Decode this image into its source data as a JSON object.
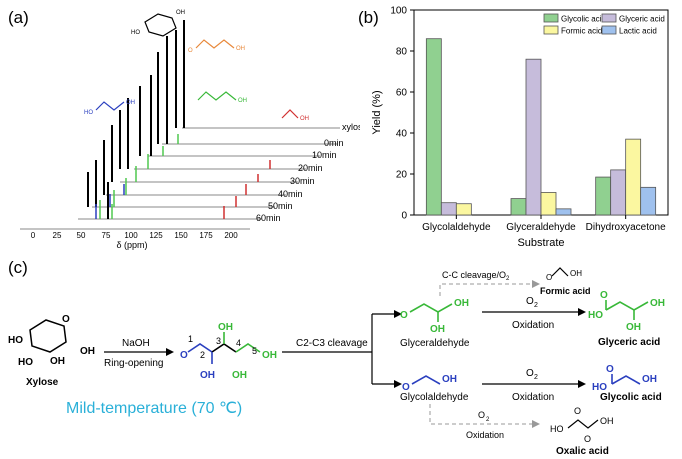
{
  "panels": {
    "a": "(a)",
    "b": "(b)",
    "c": "(c)"
  },
  "panel_a": {
    "trace_labels": [
      "xylose",
      "0min",
      "10min",
      "20min",
      "30min",
      "40min",
      "50min",
      "60min"
    ],
    "x_ticks": [
      "0",
      "25",
      "50",
      "75",
      "100",
      "125",
      "150",
      "175",
      "200"
    ],
    "x_label": "δ (ppm)"
  },
  "chart_data": {
    "type": "bar",
    "categories": [
      "Glycolaldehyde",
      "Glyceraldehyde",
      "Dihydroxyacetone"
    ],
    "series": [
      {
        "name": "Glycolic acid",
        "color": "#90d090",
        "values": [
          86,
          8,
          18.5
        ]
      },
      {
        "name": "Glyceric acid",
        "color": "#c6bcdb",
        "values": [
          6,
          76,
          22
        ]
      },
      {
        "name": "Formic acid",
        "color": "#fbf7a0",
        "values": [
          5.5,
          11,
          37
        ]
      },
      {
        "name": "Lactic acid",
        "color": "#9fc1ee",
        "values": [
          0,
          3,
          13.5
        ]
      }
    ],
    "xlabel": "Substrate",
    "ylabel": "Yield (%)",
    "ylim": [
      0,
      100
    ],
    "yticks": [
      "0",
      "20",
      "40",
      "60",
      "80",
      "100"
    ],
    "legend": "top-right"
  },
  "scheme": {
    "xylose": "Xylose",
    "naoh": "NaOH",
    "ring_opening": "Ring-opening",
    "c2c3": "C2-C3 cleavage",
    "cc_cleavage": "C-C cleavage/O",
    "o2": "O",
    "two": "2",
    "oxidation": "Oxidation",
    "glyceraldehyde": "Glyceraldehyde",
    "glycolaldehyde": "Glycolaldehyde",
    "formic_acid": "Formic acid",
    "glyceric_acid": "Glyceric acid",
    "glycolic_acid": "Glycolic acid",
    "oxalic_acid": "Oxalic acid",
    "mild": "Mild-temperature (70 ℃)",
    "atoms": {
      "o": "O",
      "oh": "OH",
      "ho": "HO"
    },
    "carbons": [
      "1",
      "2",
      "3",
      "4",
      "5"
    ]
  }
}
